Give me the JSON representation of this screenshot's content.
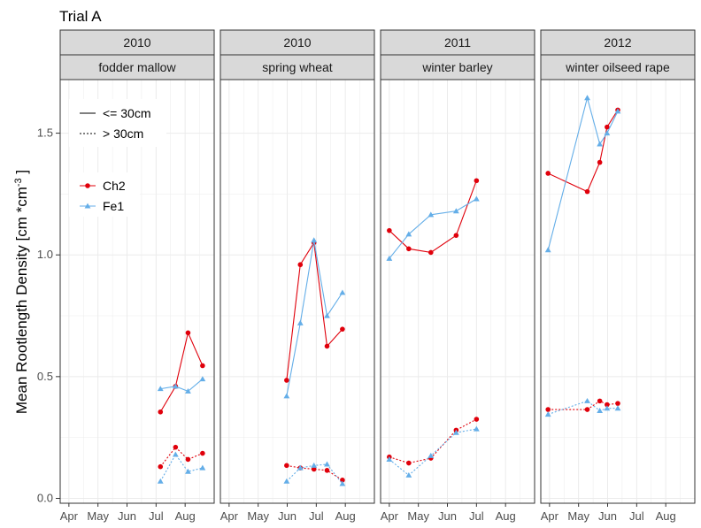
{
  "chart_data": {
    "type": "line",
    "title": "Trial A",
    "ylabel": "Mean Rootlength Density [cm *cm",
    "ylabel_sup": "-3",
    "ylabel_end": " ]",
    "ylim": [
      -0.02,
      1.72
    ],
    "yticks": [
      0.0,
      0.5,
      1.0,
      1.5
    ],
    "ytick_labels": [
      "0.0",
      "0.5",
      "1.0",
      "1.5"
    ],
    "x_ticks": [
      4,
      5,
      6,
      7,
      8
    ],
    "x_tick_labels": [
      "Apr",
      "May",
      "Jun",
      "Jul",
      "Aug"
    ],
    "xlim": [
      3.7,
      9.0
    ],
    "colors": {
      "Ch2": "#e0000b",
      "Fe1": "#64aee8"
    },
    "legend": {
      "depth": [
        {
          "label": "<= 30cm",
          "linetype": "solid"
        },
        {
          "label": "> 30cm",
          "linetype": "dotted"
        }
      ],
      "series": [
        {
          "label": "Ch2",
          "shape": "circle"
        },
        {
          "label": "Fe1",
          "shape": "triangle"
        }
      ]
    },
    "panels": [
      {
        "year": "2010",
        "crop": "fodder mallow",
        "series": [
          {
            "name": "Ch2",
            "depth": "<= 30cm",
            "x": [
              7.15,
              7.67,
              8.1,
              8.6
            ],
            "y": [
              0.355,
              0.46,
              0.68,
              0.545
            ]
          },
          {
            "name": "Fe1",
            "depth": "<= 30cm",
            "x": [
              7.15,
              7.67,
              8.1,
              8.6
            ],
            "y": [
              0.45,
              0.46,
              0.44,
              0.49
            ]
          },
          {
            "name": "Ch2",
            "depth": "> 30cm",
            "x": [
              7.15,
              7.67,
              8.1,
              8.6
            ],
            "y": [
              0.13,
              0.21,
              0.16,
              0.185
            ]
          },
          {
            "name": "Fe1",
            "depth": "> 30cm",
            "x": [
              7.15,
              7.67,
              8.1,
              8.6
            ],
            "y": [
              0.07,
              0.18,
              0.11,
              0.125
            ]
          }
        ]
      },
      {
        "year": "2010",
        "crop": "spring wheat",
        "series": [
          {
            "name": "Ch2",
            "depth": "<= 30cm",
            "x": [
              5.98,
              6.45,
              6.92,
              7.37,
              7.9
            ],
            "y": [
              0.485,
              0.96,
              1.05,
              0.625,
              0.695
            ]
          },
          {
            "name": "Fe1",
            "depth": "<= 30cm",
            "x": [
              5.98,
              6.45,
              6.92,
              7.37,
              7.9
            ],
            "y": [
              0.42,
              0.72,
              1.06,
              0.75,
              0.845
            ]
          },
          {
            "name": "Ch2",
            "depth": "> 30cm",
            "x": [
              5.98,
              6.45,
              6.92,
              7.37,
              7.9
            ],
            "y": [
              0.135,
              0.125,
              0.12,
              0.115,
              0.075
            ]
          },
          {
            "name": "Fe1",
            "depth": "> 30cm",
            "x": [
              5.98,
              6.45,
              6.92,
              7.37,
              7.9
            ],
            "y": [
              0.07,
              0.125,
              0.135,
              0.14,
              0.06
            ]
          }
        ]
      },
      {
        "year": "2011",
        "crop": "winter barley",
        "series": [
          {
            "name": "Ch2",
            "depth": "<= 30cm",
            "x": [
              4.0,
              4.67,
              5.43,
              6.3,
              7.0
            ],
            "y": [
              1.1,
              1.025,
              1.01,
              1.08,
              1.305
            ]
          },
          {
            "name": "Fe1",
            "depth": "<= 30cm",
            "x": [
              4.0,
              4.67,
              5.43,
              6.3,
              7.0
            ],
            "y": [
              0.985,
              1.085,
              1.165,
              1.18,
              1.23
            ]
          },
          {
            "name": "Ch2",
            "depth": "> 30cm",
            "x": [
              4.0,
              4.67,
              5.43,
              6.3,
              7.0
            ],
            "y": [
              0.17,
              0.145,
              0.165,
              0.28,
              0.325
            ]
          },
          {
            "name": "Fe1",
            "depth": "> 30cm",
            "x": [
              4.0,
              4.67,
              5.43,
              6.3,
              7.0
            ],
            "y": [
              0.16,
              0.095,
              0.175,
              0.27,
              0.285
            ]
          }
        ]
      },
      {
        "year": "2012",
        "crop": "winter oilseed rape",
        "series": [
          {
            "name": "Ch2",
            "depth": "<= 30cm",
            "x": [
              3.95,
              5.3,
              5.73,
              5.98,
              6.35
            ],
            "y": [
              1.335,
              1.26,
              1.38,
              1.525,
              1.595
            ]
          },
          {
            "name": "Fe1",
            "depth": "<= 30cm",
            "x": [
              3.95,
              5.3,
              5.73,
              5.98,
              6.35
            ],
            "y": [
              1.02,
              1.645,
              1.455,
              1.5,
              1.59
            ]
          },
          {
            "name": "Ch2",
            "depth": "> 30cm",
            "x": [
              3.95,
              5.3,
              5.73,
              5.98,
              6.35
            ],
            "y": [
              0.365,
              0.365,
              0.4,
              0.385,
              0.39
            ]
          },
          {
            "name": "Fe1",
            "depth": "> 30cm",
            "x": [
              3.95,
              5.3,
              5.73,
              5.98,
              6.35
            ],
            "y": [
              0.345,
              0.4,
              0.36,
              0.37,
              0.37
            ]
          }
        ]
      }
    ]
  }
}
